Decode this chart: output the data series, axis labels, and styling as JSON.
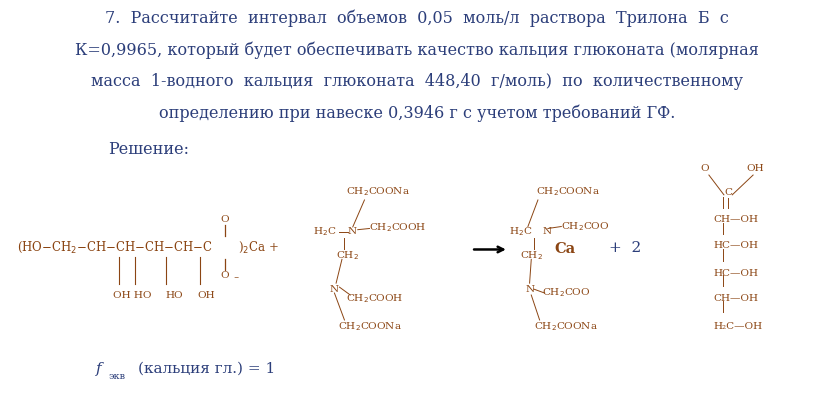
{
  "background_color": "#ffffff",
  "text_color": "#2c3e7a",
  "chem_color": "#8B4513",
  "title_text": "7.  Рассчитайте  интервал  объемов  0,05  моль/л  раствора  Трилона  Б  с",
  "line2_text": "К=0,9965, который будет обеспечивать качество кальция глюконата (молярная",
  "line3_text": "масса  1-водного  кальция  глюконата  448,40  г/моль)  по  количественному",
  "line4_text": "определению при навеске 0,3946 г с учетом требований ГФ.",
  "reshenie_text": "Решение:",
  "fig_width": 8.34,
  "fig_height": 3.96,
  "dpi": 100,
  "font_size_main": 11.5,
  "font_size_small": 7.5,
  "font_size_formula": 11.0
}
